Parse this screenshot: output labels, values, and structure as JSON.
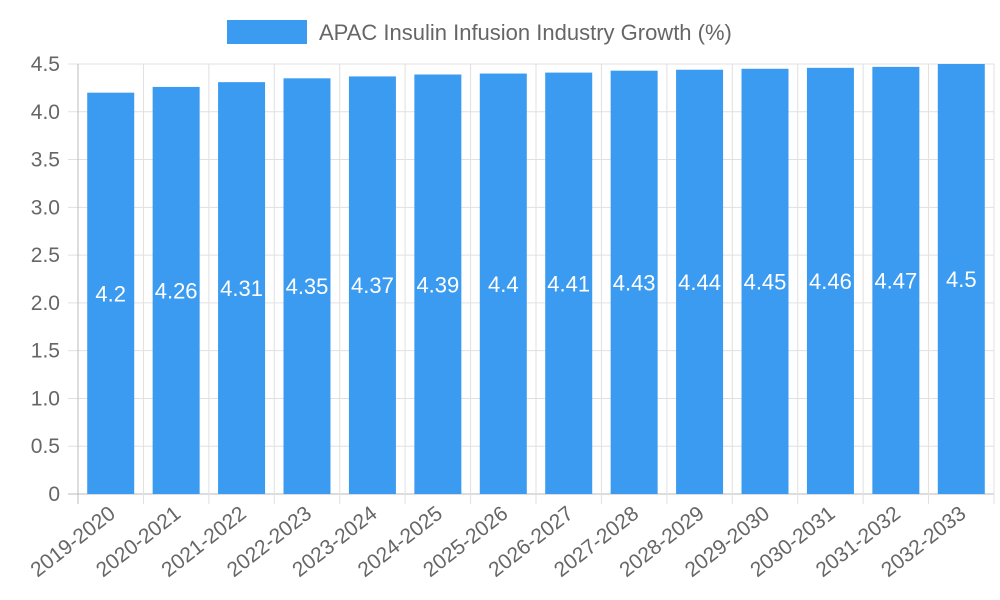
{
  "chart_data": {
    "type": "bar",
    "title": "",
    "xlabel": "",
    "ylabel": "",
    "legend": {
      "label": "APAC Insulin Infusion Industry Growth (%)",
      "position": "top-center"
    },
    "categories": [
      "2019-2020",
      "2020-2021",
      "2021-2022",
      "2022-2023",
      "2023-2024",
      "2024-2025",
      "2025-2026",
      "2026-2027",
      "2027-2028",
      "2028-2029",
      "2029-2030",
      "2030-2031",
      "2031-2032",
      "2032-2033"
    ],
    "values": [
      4.2,
      4.26,
      4.31,
      4.35,
      4.37,
      4.39,
      4.4,
      4.41,
      4.43,
      4.44,
      4.45,
      4.46,
      4.47,
      4.5
    ],
    "data_labels": [
      "4.2",
      "4.26",
      "4.31",
      "4.35",
      "4.37",
      "4.39",
      "4.4",
      "4.41",
      "4.43",
      "4.44",
      "4.45",
      "4.46",
      "4.47",
      "4.5"
    ],
    "ylim": [
      0,
      4.5
    ],
    "yticks": [
      "0",
      "0.5",
      "1.0",
      "1.5",
      "2.0",
      "2.5",
      "3.0",
      "3.5",
      "4.0",
      "4.5"
    ],
    "grid": true,
    "colors": {
      "bar": "#3b9bf0",
      "grid": "#e0e0e0",
      "axis": "#bbbbbb",
      "text": "#666666",
      "label": "#ffffff"
    }
  }
}
